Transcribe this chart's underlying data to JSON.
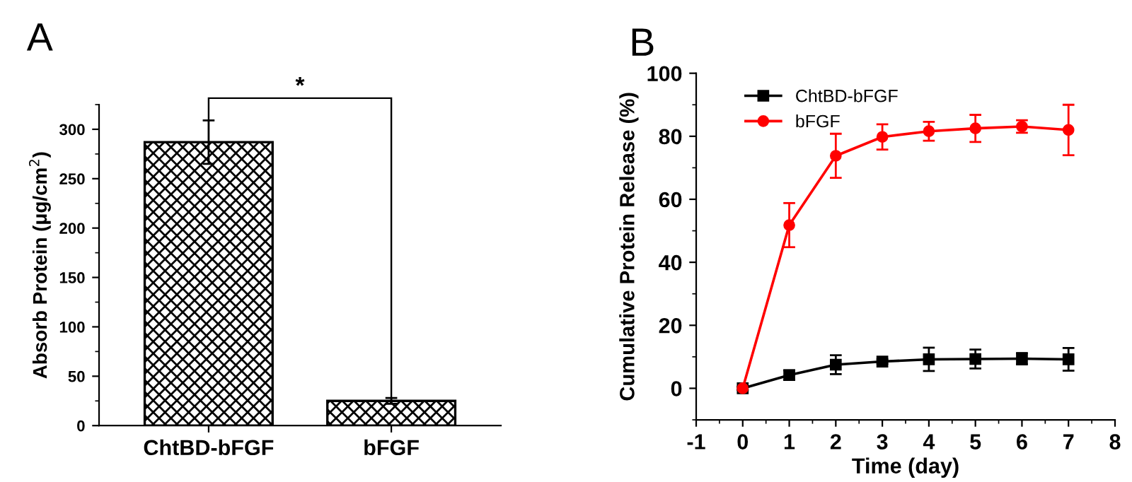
{
  "chart_data": [
    {
      "type": "bar",
      "title": "A",
      "ylabel": "Absorb Protein (μg/cm$^{2}$)",
      "categories": [
        "ChtBD-bFGF",
        "bFGF"
      ],
      "series": [
        {
          "color": "#000000",
          "values": [
            287,
            25
          ],
          "errors": [
            22,
            3
          ]
        }
      ],
      "ylim": [
        0,
        325
      ],
      "yticks": [
        0,
        50,
        100,
        150,
        200,
        250,
        300
      ],
      "grid": false,
      "annotations": [
        "*"
      ]
    },
    {
      "type": "line",
      "title": "B",
      "xlabel": "Time (day)",
      "ylabel": "Cumulative Protein Release (%)",
      "x": [
        0,
        1,
        2,
        3,
        4,
        5,
        6,
        7
      ],
      "series": [
        {
          "name": "ChtBD-bFGF",
          "color": "#000000",
          "marker": "square",
          "values": [
            0,
            4.2,
            7.5,
            8.5,
            9.2,
            9.3,
            9.4,
            9.2
          ],
          "errors": [
            0.5,
            1.5,
            3,
            0.7,
            3.7,
            3,
            1.8,
            3.6
          ]
        },
        {
          "name": "bFGF",
          "color": "#ff0000",
          "marker": "circle",
          "values": [
            0,
            51.8,
            73.8,
            79.8,
            81.6,
            82.5,
            83.1,
            82
          ],
          "errors": [
            0.5,
            7,
            7,
            4,
            3,
            4.3,
            2,
            8
          ]
        }
      ],
      "xlim": [
        -1,
        8
      ],
      "xticks": [
        -1,
        0,
        1,
        2,
        3,
        4,
        5,
        6,
        7,
        8
      ],
      "ylim": [
        -10,
        100
      ],
      "yticks": [
        0,
        20,
        40,
        60,
        80,
        100
      ],
      "grid": false,
      "legend": "top left",
      "line_style": "solid"
    }
  ]
}
